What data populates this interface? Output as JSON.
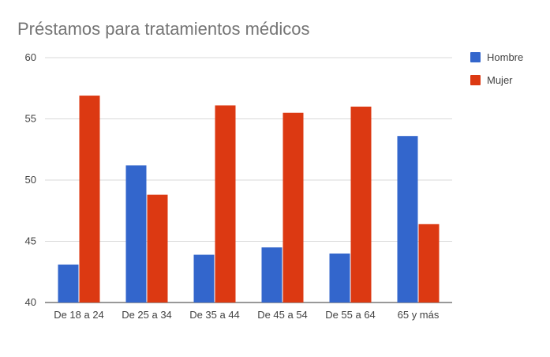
{
  "chart_data": {
    "type": "bar",
    "title": "Préstamos para tratamientos médicos",
    "xlabel": "",
    "ylabel": "",
    "categories": [
      "De 18 a 24",
      "De 25 a 34",
      "De 35 a 44",
      "De 45 a 54",
      "De 55 a 64",
      "65 y más"
    ],
    "series": [
      {
        "name": "Hombre",
        "color": "#3366cc",
        "values": [
          43.1,
          51.2,
          43.9,
          44.5,
          44.0,
          53.6
        ]
      },
      {
        "name": "Mujer",
        "color": "#dc3912",
        "values": [
          56.9,
          48.8,
          56.1,
          55.5,
          56.0,
          46.4
        ]
      }
    ],
    "ylim": [
      40,
      60
    ],
    "yticks": [
      "40",
      "45",
      "50",
      "55",
      "60"
    ],
    "grid": true,
    "legend_position": "right"
  }
}
